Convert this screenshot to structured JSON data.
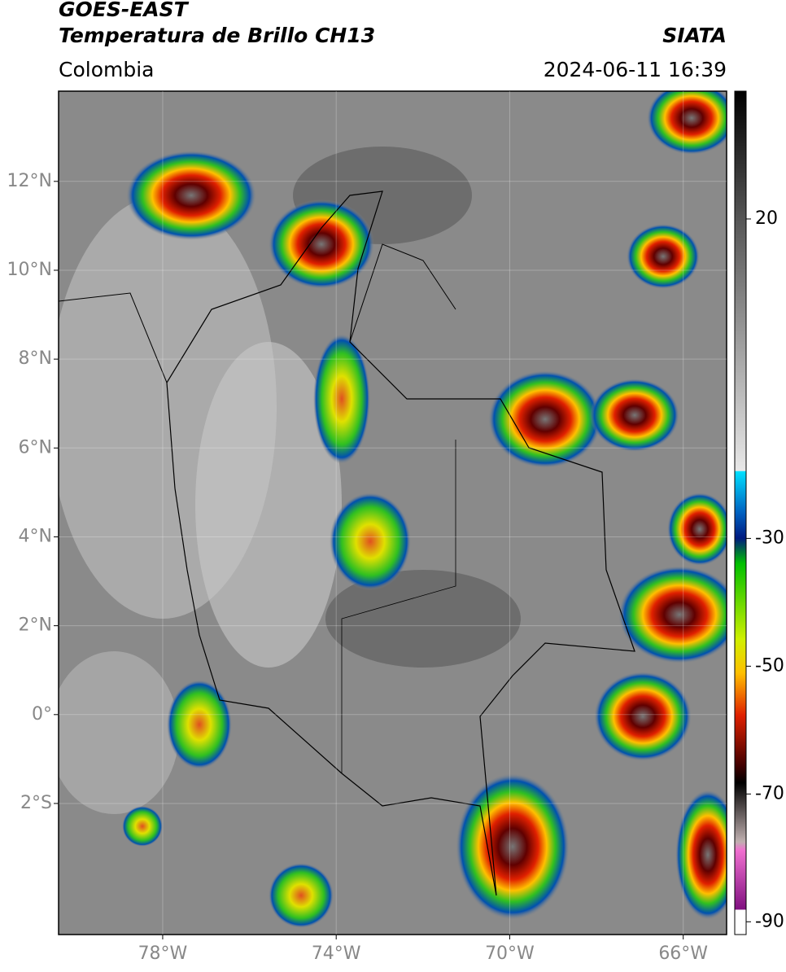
{
  "header": {
    "title_line1": "GOES-EAST",
    "title_line2": "Temperatura de Brillo CH13",
    "source": "SIATA",
    "region": "Colombia",
    "datetime": "2024-06-11 16:39"
  },
  "map": {
    "xlim": [
      -80.4,
      -65
    ],
    "ylim": [
      -4.95,
      14.03
    ],
    "xticks": [
      {
        "value": -78,
        "label": "78°W"
      },
      {
        "value": -74,
        "label": "74°W"
      },
      {
        "value": -70,
        "label": "70°W"
      },
      {
        "value": -66,
        "label": "66°W"
      }
    ],
    "yticks": [
      {
        "value": 12,
        "label": "12°N"
      },
      {
        "value": 10,
        "label": "10°N"
      },
      {
        "value": 8,
        "label": "8°N"
      },
      {
        "value": 6,
        "label": "6°N"
      },
      {
        "value": 4,
        "label": "4°N"
      },
      {
        "value": 2,
        "label": "2°N"
      },
      {
        "value": 0,
        "label": "0°"
      },
      {
        "value": -2,
        "label": "2°S"
      }
    ]
  },
  "colorbar": {
    "lim": [
      -92,
      40
    ],
    "ticks": [
      20,
      -30,
      -50,
      -70,
      -90
    ]
  }
}
